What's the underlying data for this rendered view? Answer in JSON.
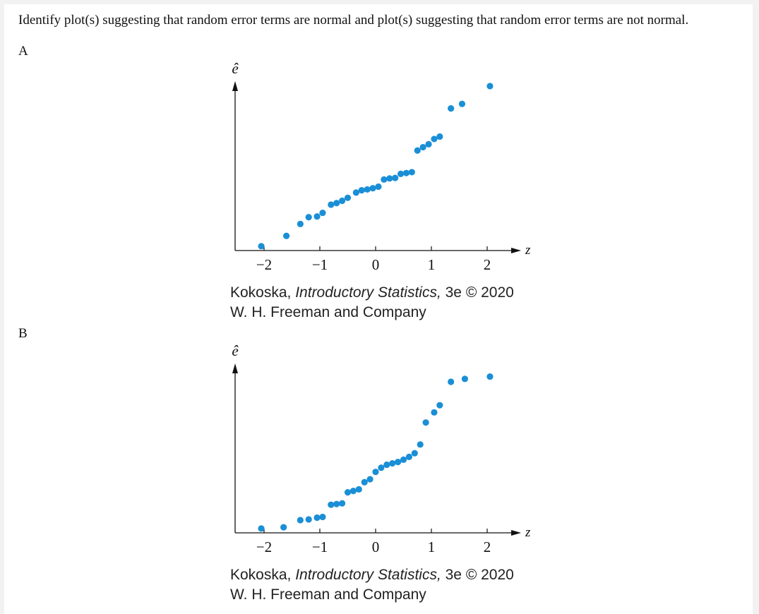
{
  "question": "Identify plot(s) suggesting that random error terms are normal and plot(s) suggesting that random error terms are not normal.",
  "accent_color": "#1a8fd6",
  "charts": [
    {
      "label": "A",
      "credit": {
        "line1_pre": "Kokoska, ",
        "line1_italic": "Introductory Statistics,",
        "line1_post": " 3e © 2020",
        "line2": "W. H. Freeman and Company"
      }
    },
    {
      "label": "B",
      "credit": {
        "line1_pre": "Kokoska, ",
        "line1_italic": "Introductory Statistics,",
        "line1_post": " 3e © 2020",
        "line2": "W. H. Freeman and Company"
      }
    }
  ],
  "chart_data": [
    {
      "type": "scatter",
      "title": "",
      "xlabel": "z",
      "ylabel": "ê",
      "xlim": [
        -2.2,
        2.5
      ],
      "ylim": [
        0,
        10
      ],
      "x_ticks": [
        -2,
        -1,
        0,
        1,
        2
      ],
      "x_tick_labels": [
        "−2",
        "−1",
        "0",
        "1",
        "2"
      ],
      "grid": false,
      "x": [
        -2.05,
        -1.6,
        -1.35,
        -1.2,
        -1.05,
        -0.95,
        -0.8,
        -0.7,
        -0.6,
        -0.5,
        -0.35,
        -0.25,
        -0.15,
        -0.05,
        0.05,
        0.15,
        0.25,
        0.35,
        0.45,
        0.55,
        0.65,
        0.75,
        0.85,
        0.95,
        1.05,
        1.15,
        1.35,
        1.55,
        2.05
      ],
      "y": [
        0.25,
        0.84,
        1.52,
        1.91,
        1.95,
        2.16,
        2.63,
        2.72,
        2.85,
        3.02,
        3.32,
        3.45,
        3.5,
        3.57,
        3.66,
        4.07,
        4.13,
        4.16,
        4.39,
        4.44,
        4.49,
        5.73,
        5.92,
        6.09,
        6.39,
        6.53,
        8.14,
        8.4,
        9.42
      ]
    },
    {
      "type": "scatter",
      "title": "",
      "xlabel": "z",
      "ylabel": "ê",
      "xlim": [
        -2.2,
        2.5
      ],
      "ylim": [
        0,
        10
      ],
      "x_ticks": [
        -2,
        -1,
        0,
        1,
        2
      ],
      "x_tick_labels": [
        "−2",
        "−1",
        "0",
        "1",
        "2"
      ],
      "grid": false,
      "x": [
        -2.05,
        -1.65,
        -1.35,
        -1.2,
        -1.05,
        -0.95,
        -0.8,
        -0.7,
        -0.6,
        -0.5,
        -0.4,
        -0.3,
        -0.2,
        -0.1,
        0,
        0.1,
        0.2,
        0.3,
        0.4,
        0.5,
        0.6,
        0.7,
        0.8,
        0.9,
        1.05,
        1.15,
        1.35,
        1.6,
        2.05
      ],
      "y": [
        0.25,
        0.32,
        0.73,
        0.77,
        0.87,
        0.91,
        1.61,
        1.65,
        1.69,
        2.32,
        2.4,
        2.49,
        2.9,
        3.07,
        3.49,
        3.73,
        3.9,
        3.98,
        4.06,
        4.19,
        4.35,
        4.56,
        5.06,
        6.32,
        6.9,
        7.31,
        8.65,
        8.82,
        8.95
      ]
    }
  ]
}
